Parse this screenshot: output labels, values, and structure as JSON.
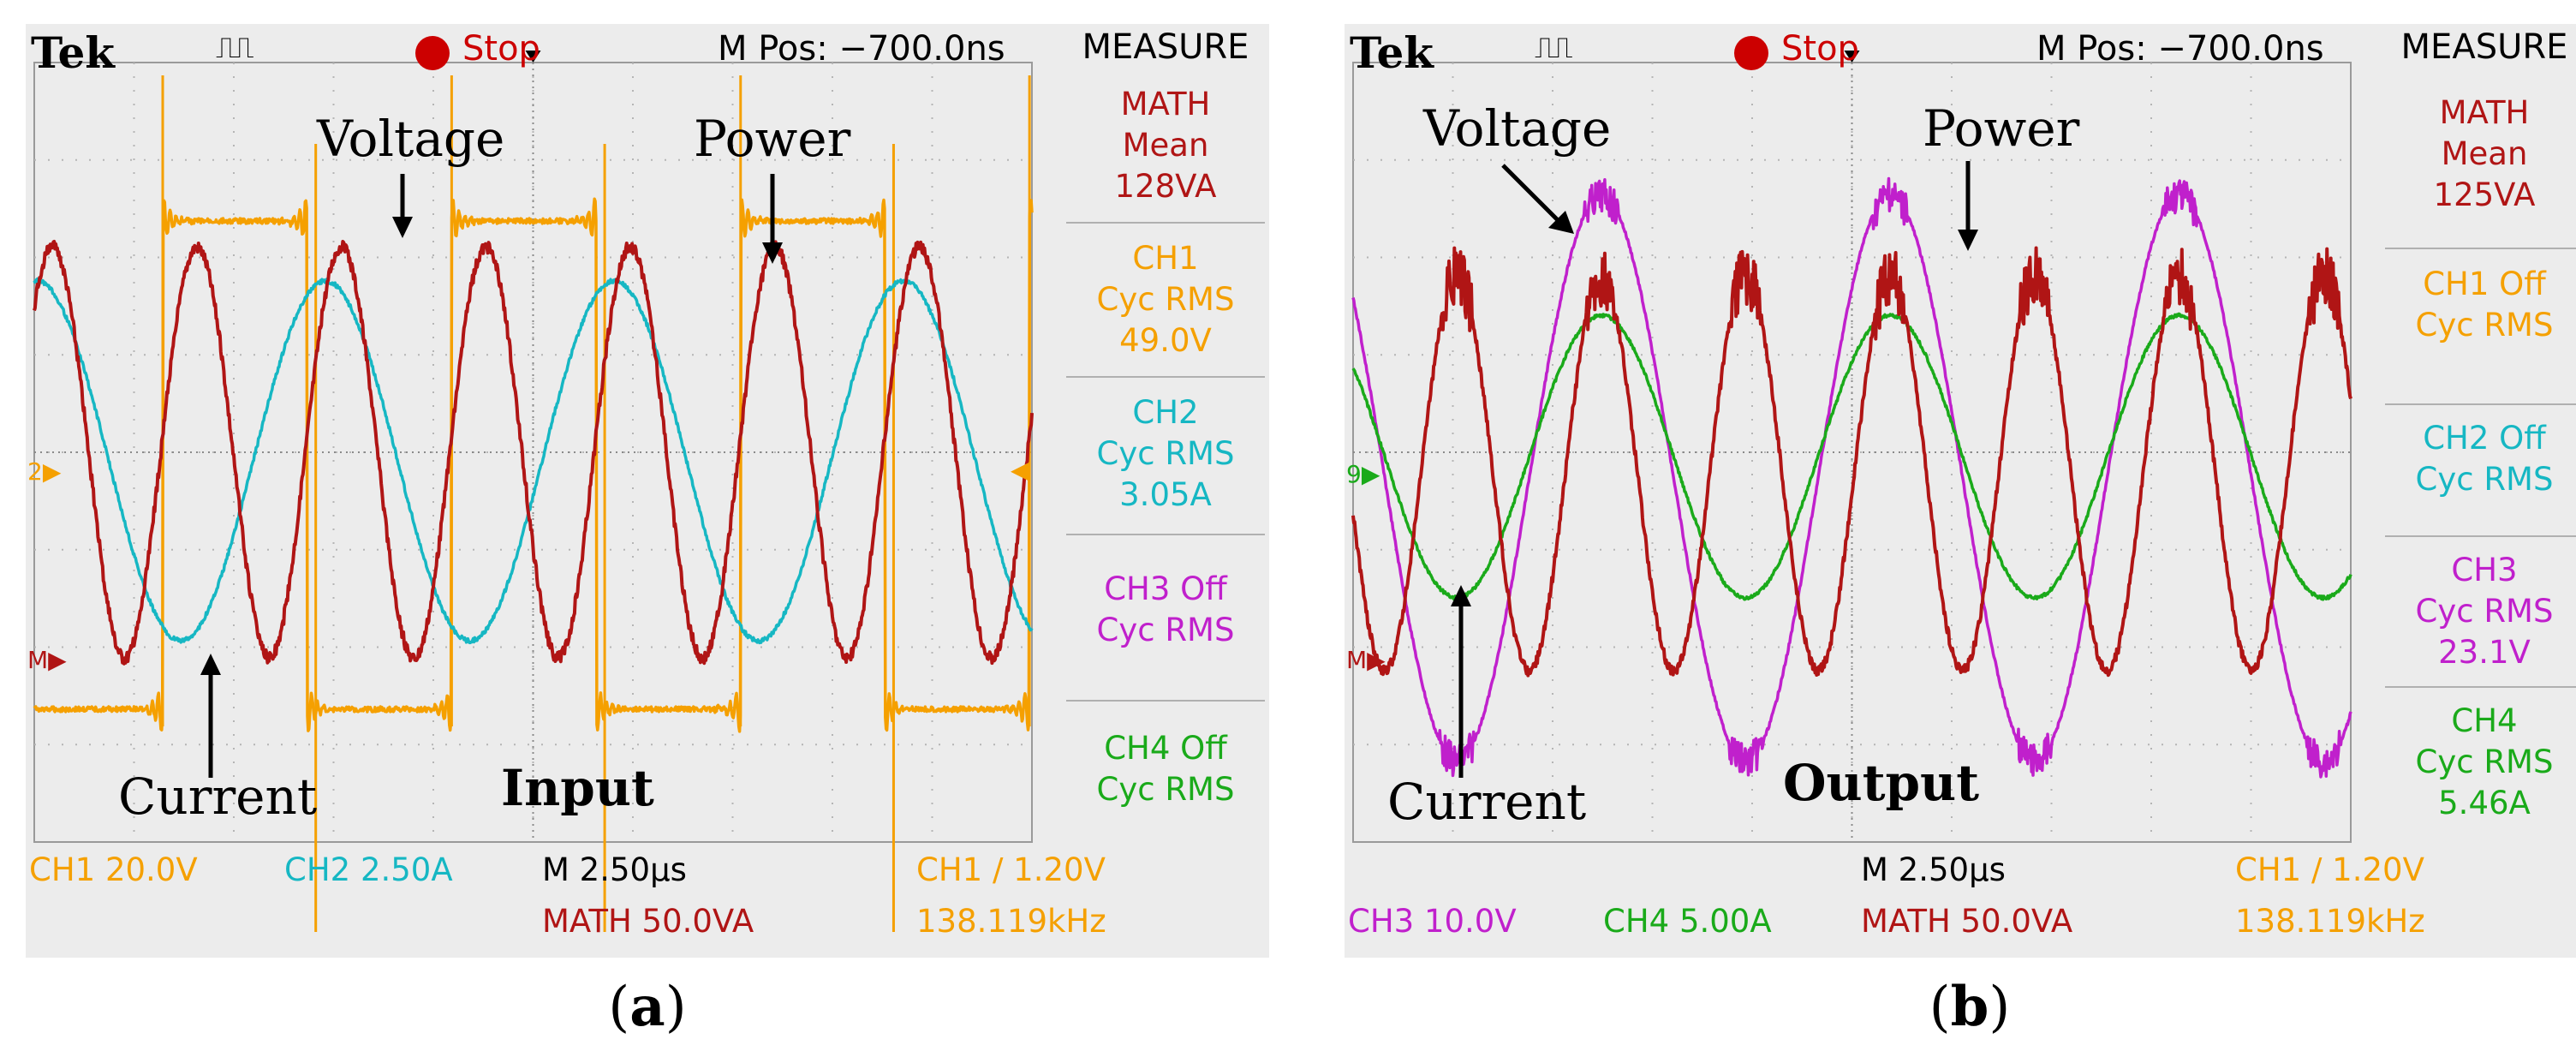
{
  "chart_data": [
    {
      "type": "line",
      "panel": "a",
      "caption": "a",
      "header": {
        "brand": "Tek",
        "trigger_icon": "⎍⎍",
        "status": "Stop",
        "m_pos": "M Pos: −700.0ns"
      },
      "measure": {
        "title": "MEASURE",
        "items": [
          {
            "lines": [
              "MATH",
              "Mean",
              "128VA"
            ],
            "color": "#b01515"
          },
          {
            "lines": [
              "CH1",
              "Cyc RMS",
              "49.0V"
            ],
            "color": "#f5a000"
          },
          {
            "lines": [
              "CH2",
              "Cyc RMS",
              "3.05A"
            ],
            "color": "#16b7c3"
          },
          {
            "lines": [
              "CH3 Off",
              "Cyc RMS"
            ],
            "color": "#c020cc"
          },
          {
            "lines": [
              "CH4 Off",
              "Cyc RMS"
            ],
            "color": "#1aaa1a"
          }
        ]
      },
      "bottom": {
        "ch_a": "CH1  20.0V",
        "ch_b": "CH2  2.50A",
        "timebase": "M 2.50µs",
        "math": "MATH 50.0VA",
        "trigger": "CH1  ∕  1.20V",
        "freq": "138.119kHz"
      },
      "annotations": {
        "voltage": "Voltage",
        "power": "Power",
        "current": "Current",
        "panel_label": "Input"
      },
      "x_range_us": [
        0,
        25
      ],
      "period_us": 7.24,
      "series": [
        {
          "name": "Voltage",
          "channel": "CH1",
          "color": "#f5a000",
          "shape": "square",
          "amplitude_V": 49.0,
          "scale_per_div": "20.0V"
        },
        {
          "name": "Current",
          "channel": "CH2",
          "color": "#16b7c3",
          "shape": "sine",
          "rms_A": 3.05,
          "scale_per_div": "2.50A"
        },
        {
          "name": "Power",
          "channel": "MATH",
          "color": "#b01515",
          "shape": "double-frequency",
          "mean_VA": 128,
          "scale_per_div": "50.0VA"
        }
      ],
      "colors": {
        "ch1": "#f5a000",
        "ch2": "#16b7c3",
        "ch3": "#c020cc",
        "ch4": "#1aaa1a",
        "math": "#b01515",
        "stop": "#cc0000"
      }
    },
    {
      "type": "line",
      "panel": "b",
      "caption": "b",
      "header": {
        "brand": "Tek",
        "trigger_icon": "⎍⎍",
        "status": "Stop",
        "m_pos": "M Pos: −700.0ns"
      },
      "measure": {
        "title": "MEASURE",
        "items": [
          {
            "lines": [
              "MATH",
              "Mean",
              "125VA"
            ],
            "color": "#b01515"
          },
          {
            "lines": [
              "CH1 Off",
              "Cyc RMS"
            ],
            "color": "#f5a000"
          },
          {
            "lines": [
              "CH2 Off",
              "Cyc RMS"
            ],
            "color": "#16b7c3"
          },
          {
            "lines": [
              "CH3",
              "Cyc RMS",
              "23.1V"
            ],
            "color": "#c020cc"
          },
          {
            "lines": [
              "CH4",
              "Cyc RMS",
              "5.46A"
            ],
            "color": "#1aaa1a"
          }
        ]
      },
      "bottom": {
        "ch_a": "CH3  10.0V",
        "ch_b": "CH4  5.00A",
        "timebase": "M 2.50µs",
        "math": "MATH 50.0VA",
        "trigger": "CH1  ∕  1.20V",
        "freq": "138.119kHz"
      },
      "annotations": {
        "voltage": "Voltage",
        "power": "Power",
        "current": "Current",
        "panel_label": "Output"
      },
      "x_range_us": [
        0,
        25
      ],
      "period_us": 7.24,
      "series": [
        {
          "name": "Voltage",
          "channel": "CH3",
          "color": "#c020cc",
          "shape": "sine",
          "rms_V": 23.1,
          "scale_per_div": "10.0V"
        },
        {
          "name": "Current",
          "channel": "CH4",
          "color": "#1aaa1a",
          "shape": "sine",
          "rms_A": 5.46,
          "scale_per_div": "5.00A"
        },
        {
          "name": "Power",
          "channel": "MATH",
          "color": "#b01515",
          "shape": "double-frequency",
          "mean_VA": 125,
          "scale_per_div": "50.0VA"
        }
      ],
      "colors": {
        "ch1": "#f5a000",
        "ch2": "#16b7c3",
        "ch3": "#c020cc",
        "ch4": "#1aaa1a",
        "math": "#b01515",
        "stop": "#cc0000"
      }
    }
  ]
}
